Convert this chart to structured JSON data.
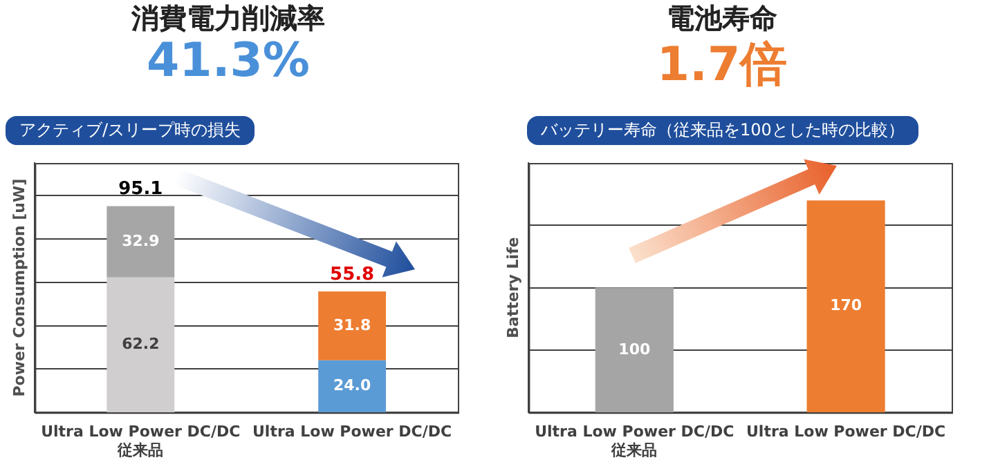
{
  "chart_data": [
    {
      "type": "bar",
      "title": "消費電力削減率",
      "subtitle": "41.3%",
      "annotations": [
        "アクティブ/スリープ時の損失"
      ],
      "ylabel": "Power Consumption [uW]",
      "categories": [
        "Ultra Low Power DC/DC\n従来品",
        "Ultra Low Power DC/DC"
      ],
      "series": [
        {
          "colors": [
            "#d0cece",
            "#5b9bd5"
          ],
          "values": [
            62.2,
            24.0
          ],
          "value_labels": [
            "62.2",
            "24.0"
          ]
        },
        {
          "colors": [
            "#a6a6a6",
            "#ed7d31"
          ],
          "values": [
            32.9,
            31.8
          ],
          "value_labels": [
            "32.9",
            "31.8"
          ]
        }
      ],
      "stacked": true,
      "totals": [
        "95.1",
        "55.8"
      ],
      "ylim": [
        0,
        115
      ],
      "yticks": [
        {
          "value": 20,
          "label": null
        },
        {
          "value": 40,
          "label": null
        },
        {
          "value": 60,
          "label": null
        },
        {
          "value": 80,
          "label": null
        },
        {
          "value": 100,
          "label": null
        }
      ],
      "grid": "y",
      "tick_labels": "x",
      "legend": false
    },
    {
      "type": "bar",
      "title": "電池寿命",
      "subtitle": "1.7倍",
      "annotations": [
        "バッテリー寿命（従来品を100とした時の比較）"
      ],
      "ylabel": "Battery Life",
      "categories": [
        "Ultra Low Power DC/DC\n従来品",
        "Ultra Low Power DC/DC"
      ],
      "values": [
        100,
        170
      ],
      "colors": [
        "#a5a5a5",
        "#ed7d31"
      ],
      "data_labels": true,
      "ylim": [
        0,
        200
      ],
      "yticks": [
        {
          "value": 50,
          "label": null
        },
        {
          "value": 100,
          "label": null
        },
        {
          "value": 150,
          "label": null
        }
      ],
      "grid": "y",
      "tick_labels": "x",
      "legend": false
    }
  ]
}
